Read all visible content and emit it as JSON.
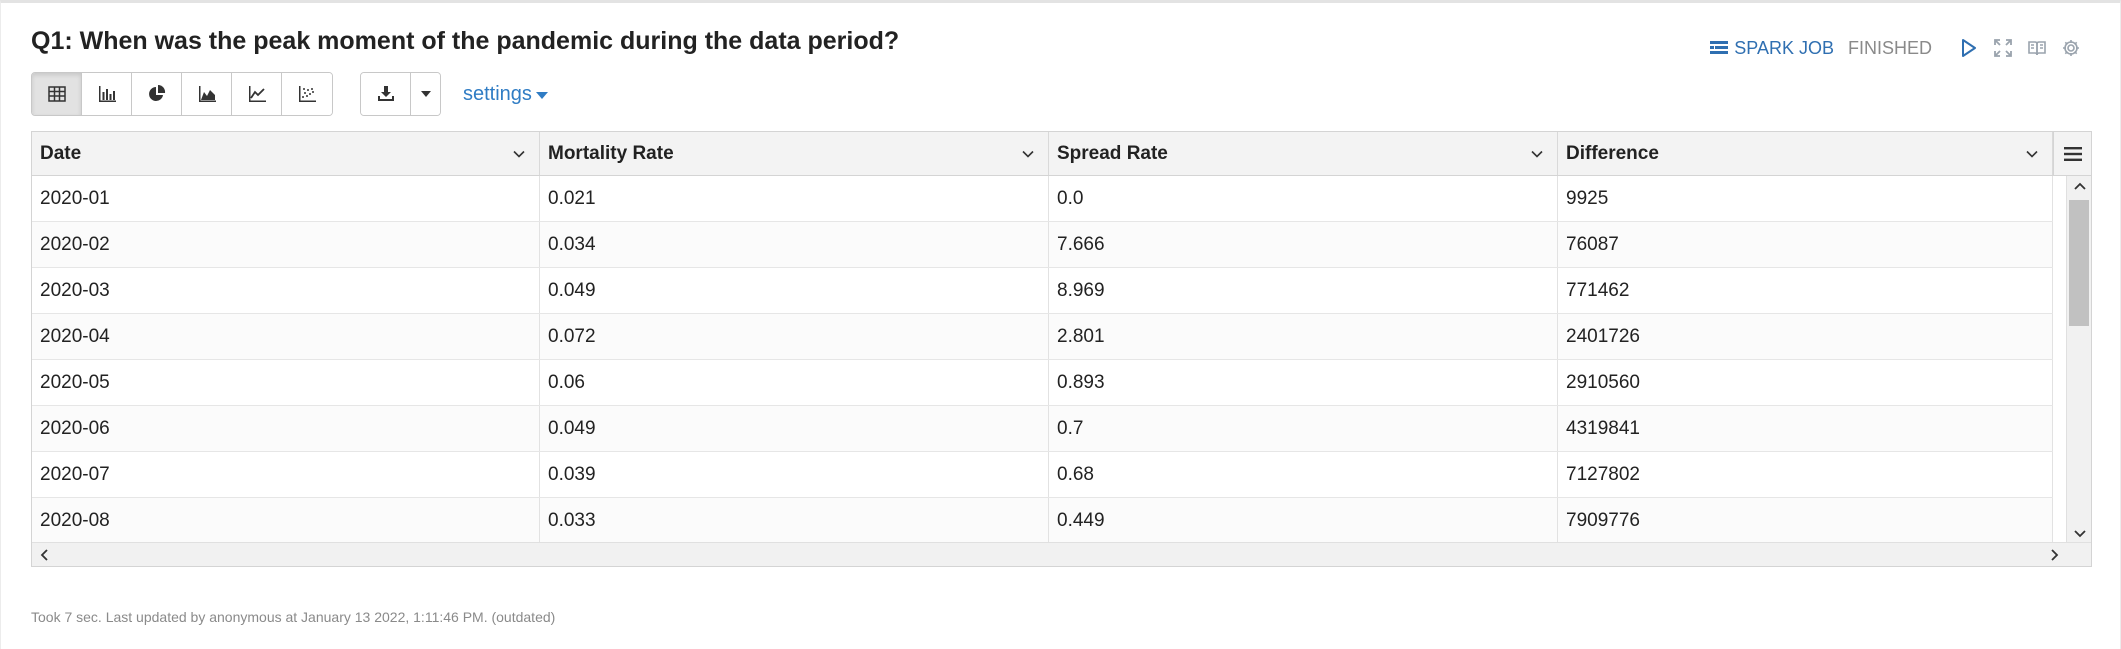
{
  "paragraph": {
    "title": "Q1: When was the peak moment of the pandemic during the data period?",
    "spark_job_label": "SPARK JOB",
    "status": "FINISHED"
  },
  "toolbar": {
    "buttons": [
      "table-icon",
      "bar-chart-icon",
      "pie-chart-icon",
      "area-chart-icon",
      "line-chart-icon",
      "scatter-chart-icon"
    ],
    "active": "table-icon",
    "settings_label": "settings"
  },
  "table": {
    "columns": [
      "Date",
      "Mortality Rate",
      "Spread Rate",
      "Difference"
    ],
    "rows": [
      [
        "2020-01",
        "0.021",
        "0.0",
        "9925"
      ],
      [
        "2020-02",
        "0.034",
        "7.666",
        "76087"
      ],
      [
        "2020-03",
        "0.049",
        "8.969",
        "771462"
      ],
      [
        "2020-04",
        "0.072",
        "2.801",
        "2401726"
      ],
      [
        "2020-05",
        "0.06",
        "0.893",
        "2910560"
      ],
      [
        "2020-06",
        "0.049",
        "0.7",
        "4319841"
      ],
      [
        "2020-07",
        "0.039",
        "0.68",
        "7127802"
      ],
      [
        "2020-08",
        "0.033",
        "0.449",
        "7909776"
      ]
    ]
  },
  "footer": {
    "text": "Took 7 sec. Last updated by anonymous at January 13 2022, 1:11:46 PM. (outdated)"
  },
  "colors": {
    "link_blue": "#2f7cc4",
    "status_gray": "#8a8a8a",
    "header_bg": "#f3f3f3"
  }
}
